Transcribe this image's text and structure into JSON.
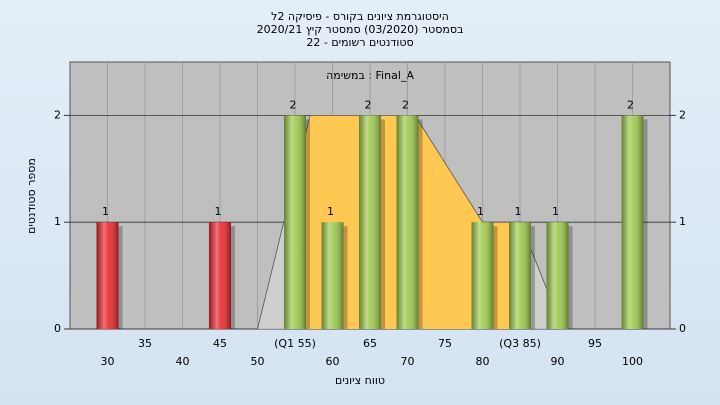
{
  "chart_data": {
    "type": "bar",
    "title": [
      "היסטוגרמת ציונים בקורס - פיסיקה 2ל",
      "בסמסטר (03/2020) סמסטר קיץ 2020/21",
      "סטודנטים רשומים - 22"
    ],
    "subtitle": "במשימה : Final_A",
    "xlabel": "טווח ציונים",
    "ylabel": "מספר סטודנטים",
    "x": [
      30,
      45,
      55,
      60,
      65,
      70,
      80,
      85,
      90,
      100
    ],
    "values": [
      1,
      1,
      2,
      1,
      2,
      2,
      1,
      1,
      1,
      2
    ],
    "colors": [
      "#e8262b",
      "#e8262b",
      "#9cc84a",
      "#9cc84a",
      "#9cc84a",
      "#9cc84a",
      "#9cc84a",
      "#9cc84a",
      "#9cc84a",
      "#9cc84a"
    ],
    "curve": {
      "x": [
        50,
        57,
        71,
        80,
        85,
        89
      ],
      "values": [
        0,
        2,
        2,
        1,
        1,
        0.3
      ],
      "fill": "#ffc853"
    },
    "xlim": [
      25,
      105
    ],
    "xticks": [
      30,
      35,
      40,
      45,
      50,
      {
        "value": 55,
        "label": "(Q1 55)"
      },
      60,
      65,
      70,
      75,
      80,
      {
        "value": 85,
        "label": "(Q3 85)"
      },
      90,
      95,
      100
    ],
    "ylim": [
      0,
      2.5
    ],
    "yticks": [
      0,
      1,
      2
    ],
    "y2lim": [
      0,
      2.5
    ],
    "y2ticks": [
      0,
      1,
      2
    ],
    "grid": true
  }
}
